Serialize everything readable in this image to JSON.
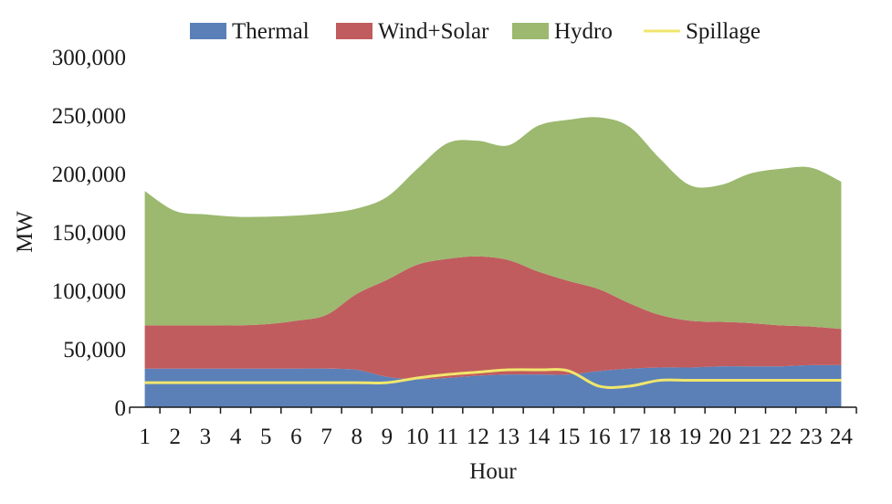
{
  "chart_data": {
    "type": "area",
    "stacked": true,
    "xlabel": "Hour",
    "ylabel": "MW",
    "x": [
      1,
      2,
      3,
      4,
      5,
      6,
      7,
      8,
      9,
      10,
      11,
      12,
      13,
      14,
      15,
      16,
      17,
      18,
      19,
      20,
      21,
      22,
      23,
      24
    ],
    "x_tick_labels": [
      "1",
      "2",
      "3",
      "4",
      "5",
      "6",
      "7",
      "8",
      "9",
      "10",
      "11",
      "12",
      "13",
      "14",
      "15",
      "16",
      "17",
      "18",
      "19",
      "20",
      "21",
      "22",
      "23",
      "24"
    ],
    "ylim": [
      0,
      300000
    ],
    "y_ticks": [
      0,
      50000,
      100000,
      150000,
      200000,
      250000,
      300000
    ],
    "y_tick_labels": [
      "0",
      "50,000",
      "100,000",
      "150,000",
      "200,000",
      "250,000",
      "300,000"
    ],
    "grid": false,
    "legend_position": "top",
    "series": [
      {
        "name": "Thermal",
        "kind": "area",
        "color": "#5b80b8",
        "values": [
          33000,
          33000,
          33000,
          33000,
          33000,
          33000,
          33000,
          32000,
          26000,
          24000,
          25000,
          27000,
          28000,
          28000,
          28000,
          31000,
          33000,
          34000,
          34000,
          35000,
          35000,
          35000,
          36000,
          36000
        ]
      },
      {
        "name": "Wind+Solar",
        "kind": "area",
        "color": "#c05c5e",
        "values": [
          37000,
          37000,
          37000,
          37000,
          38000,
          41000,
          46000,
          65000,
          83000,
          98000,
          102000,
          102000,
          98000,
          88000,
          80000,
          70000,
          56000,
          45000,
          40000,
          38000,
          37000,
          35000,
          33000,
          31000
        ]
      },
      {
        "name": "Hydro",
        "kind": "area",
        "color": "#9cb96f",
        "values": [
          115000,
          98000,
          95000,
          93000,
          92000,
          90000,
          87000,
          73000,
          71000,
          82000,
          99000,
          99000,
          98000,
          125000,
          138000,
          147000,
          151000,
          134000,
          116000,
          117000,
          128000,
          134000,
          136000,
          126000
        ]
      },
      {
        "name": "Spillage",
        "kind": "line",
        "color": "#f0e66c",
        "values": [
          21000,
          21000,
          21000,
          21000,
          21000,
          21000,
          21000,
          21000,
          21000,
          25000,
          28000,
          30000,
          32000,
          32000,
          31000,
          18000,
          18000,
          23000,
          23000,
          23000,
          23000,
          23000,
          23000,
          23000
        ]
      }
    ]
  }
}
